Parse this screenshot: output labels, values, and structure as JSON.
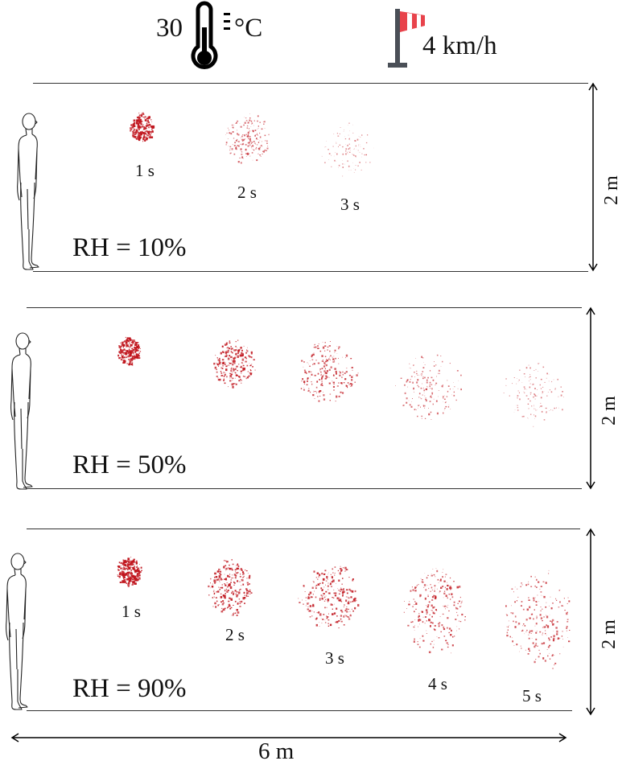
{
  "header": {
    "temperature_value": "30",
    "temperature_unit": "°C",
    "thermometer_icon": "thermometer-icon",
    "wind_icon": "windsock-icon",
    "wind_speed": "4 km/h"
  },
  "panels": [
    {
      "rh_label": "RH = 10%",
      "height_label": "2 m",
      "time_labels": [
        "1 s",
        "2 s",
        "3 s"
      ],
      "cloud_count": 3
    },
    {
      "rh_label": "RH = 50%",
      "height_label": "2 m",
      "time_labels": [],
      "cloud_count": 5
    },
    {
      "rh_label": "RH = 90%",
      "height_label": "2 m",
      "time_labels": [
        "1 s",
        "2 s",
        "3 s",
        "4 s",
        "5 s"
      ],
      "cloud_count": 5
    }
  ],
  "width_label": "6 m",
  "colors": {
    "droplet": "#c0141c",
    "windsock_red": "#e8434b",
    "pole": "#4a4f57",
    "line": "#333333"
  }
}
